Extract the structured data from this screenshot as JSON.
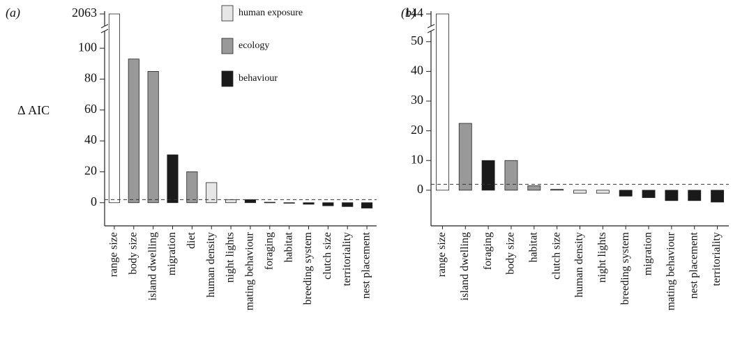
{
  "chart_data": [
    {
      "type": "bar",
      "panel": "(a)",
      "ylabel": "Δ AIC",
      "categories": [
        "range size",
        "body size",
        "island dwelling",
        "migration",
        "diet",
        "human density",
        "night lights",
        "mating behaviour",
        "foraging",
        "habitat",
        "breeding system",
        "clutch size",
        "territoriality",
        "nest placement"
      ],
      "values": [
        2063,
        93,
        85,
        31,
        20,
        13,
        2,
        2,
        0.3,
        0,
        -1,
        -2,
        -2.5,
        -3.5
      ],
      "colors": [
        "#ffffff",
        "#999999",
        "#999999",
        "#1a1a1a",
        "#999999",
        "#e6e6e6",
        "#e6e6e6",
        "#1a1a1a",
        "#1a1a1a",
        "#999999",
        "#1a1a1a",
        "#1a1a1a",
        "#1a1a1a",
        "#1a1a1a"
      ],
      "ylim": [
        -15,
        2063
      ],
      "ybreak": 110,
      "yticks": [
        0,
        20,
        40,
        60,
        80,
        100,
        2063
      ],
      "refline": 2,
      "legend": [
        {
          "name": "human exposure",
          "color": "#e6e6e6"
        },
        {
          "name": "ecology",
          "color": "#999999"
        },
        {
          "name": "behaviour",
          "color": "#1a1a1a"
        }
      ]
    },
    {
      "type": "bar",
      "panel": "(b)",
      "categories": [
        "range size",
        "island dwelling",
        "foraging",
        "body size",
        "habitat",
        "clutch size",
        "human density",
        "night lights",
        "breeding system",
        "migration",
        "mating behaviour",
        "nest placement",
        "territoriality"
      ],
      "values": [
        144,
        22.5,
        10,
        10,
        1.5,
        0.3,
        -1,
        -1,
        -2,
        -2.5,
        -3.5,
        -3.5,
        -4
      ],
      "colors": [
        "#ffffff",
        "#999999",
        "#1a1a1a",
        "#999999",
        "#999999",
        "#999999",
        "#e6e6e6",
        "#e6e6e6",
        "#1a1a1a",
        "#1a1a1a",
        "#1a1a1a",
        "#1a1a1a",
        "#1a1a1a"
      ],
      "ylim": [
        -12,
        144
      ],
      "ybreak": 53,
      "yticks": [
        0,
        10,
        20,
        30,
        40,
        50,
        144
      ],
      "refline": 2
    }
  ]
}
